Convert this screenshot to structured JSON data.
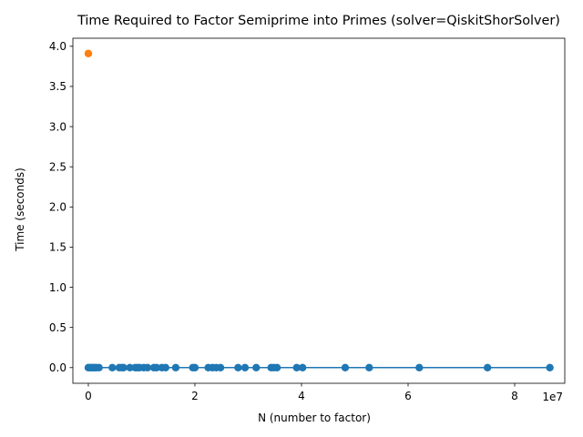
{
  "chart_data": {
    "type": "scatter",
    "title": "Time Required to Factor Semiprime into Primes (solver=QiskitShorSolver)",
    "xlabel": "N (number to factor)",
    "ylabel": "Time (seconds)",
    "x_offset_label": "1e7",
    "xlim": [
      -2900000,
      89400000
    ],
    "ylim": [
      -0.195,
      4.1
    ],
    "x_ticks": [
      0,
      20000000,
      40000000,
      60000000,
      80000000
    ],
    "x_tick_labels": [
      "0",
      "2",
      "4",
      "6",
      "8"
    ],
    "y_ticks": [
      0.0,
      0.5,
      1.0,
      1.5,
      2.0,
      2.5,
      3.0,
      3.5,
      4.0
    ],
    "y_tick_labels": [
      "0.0",
      "0.5",
      "1.0",
      "1.5",
      "2.0",
      "2.5",
      "3.0",
      "3.5",
      "4.0"
    ],
    "grid": false,
    "colors": {
      "main": "#1f77b4",
      "outlier": "#ff7f0e"
    },
    "series": [
      {
        "kind": "scatter",
        "color": "#1f77b4",
        "x": [
          0,
          300000,
          600000,
          900000,
          1200000,
          1500000,
          2000000,
          4500000,
          5800000,
          6300000,
          6600000,
          7800000,
          8800000,
          9200000,
          9600000,
          10400000,
          11100000,
          12300000,
          12800000,
          13800000,
          14500000,
          16400000,
          19600000,
          20000000,
          22500000,
          23300000,
          24000000,
          24800000,
          28100000,
          29400000,
          31500000,
          34300000,
          34800000,
          35400000,
          39100000,
          40200000,
          48200000,
          52700000,
          62100000,
          74900000,
          86600000
        ],
        "y": [
          0,
          0,
          0,
          0,
          0,
          0,
          0,
          0,
          0,
          0,
          0,
          0,
          0,
          0,
          0,
          0,
          0,
          0,
          0,
          0,
          0,
          0,
          0,
          0,
          0,
          0,
          0,
          0,
          0,
          0,
          0,
          0,
          0,
          0,
          0,
          0,
          0,
          0,
          0,
          0,
          0
        ]
      },
      {
        "kind": "line",
        "color": "#1f77b4",
        "x": [
          0,
          86600000
        ],
        "y": [
          0.001,
          0.001
        ]
      },
      {
        "kind": "scatter",
        "color": "#ff7f0e",
        "x": [
          15
        ],
        "y": [
          3.91
        ]
      }
    ]
  }
}
